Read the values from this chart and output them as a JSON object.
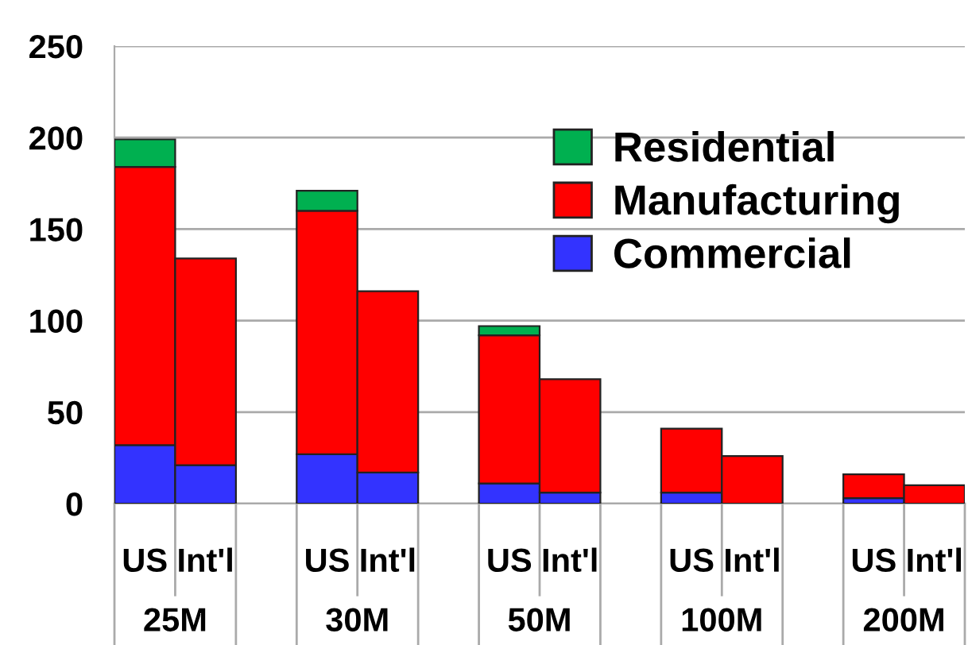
{
  "chart_data": {
    "type": "bar",
    "stacked": true,
    "categories": [
      "US",
      "Int'l",
      null,
      "US",
      "Int'l",
      null,
      "US",
      "Int'l",
      null,
      "US",
      "Int'l",
      null,
      "US",
      "Int'l"
    ],
    "series": [
      {
        "name": "Commercial",
        "color": "#3333ff",
        "values": [
          32,
          21,
          null,
          27,
          17,
          null,
          11,
          6,
          null,
          6,
          null,
          null,
          3,
          null
        ]
      },
      {
        "name": "Manufacturing",
        "color": "#ff0000",
        "values": [
          152,
          113,
          null,
          133,
          99,
          null,
          81,
          62,
          null,
          35,
          26,
          null,
          13,
          10
        ]
      },
      {
        "name": "Residential",
        "color": "#00b050",
        "values": [
          15,
          null,
          null,
          11,
          null,
          null,
          5,
          null,
          null,
          null,
          null,
          null,
          null,
          null
        ]
      }
    ],
    "annotations": [
      "25M",
      "30M",
      "50M",
      "100M",
      "200M"
    ],
    "ylim": [
      0,
      250
    ],
    "yticks": [
      0,
      50,
      100,
      150,
      200,
      250
    ],
    "grid": "y",
    "legend": "top right"
  }
}
